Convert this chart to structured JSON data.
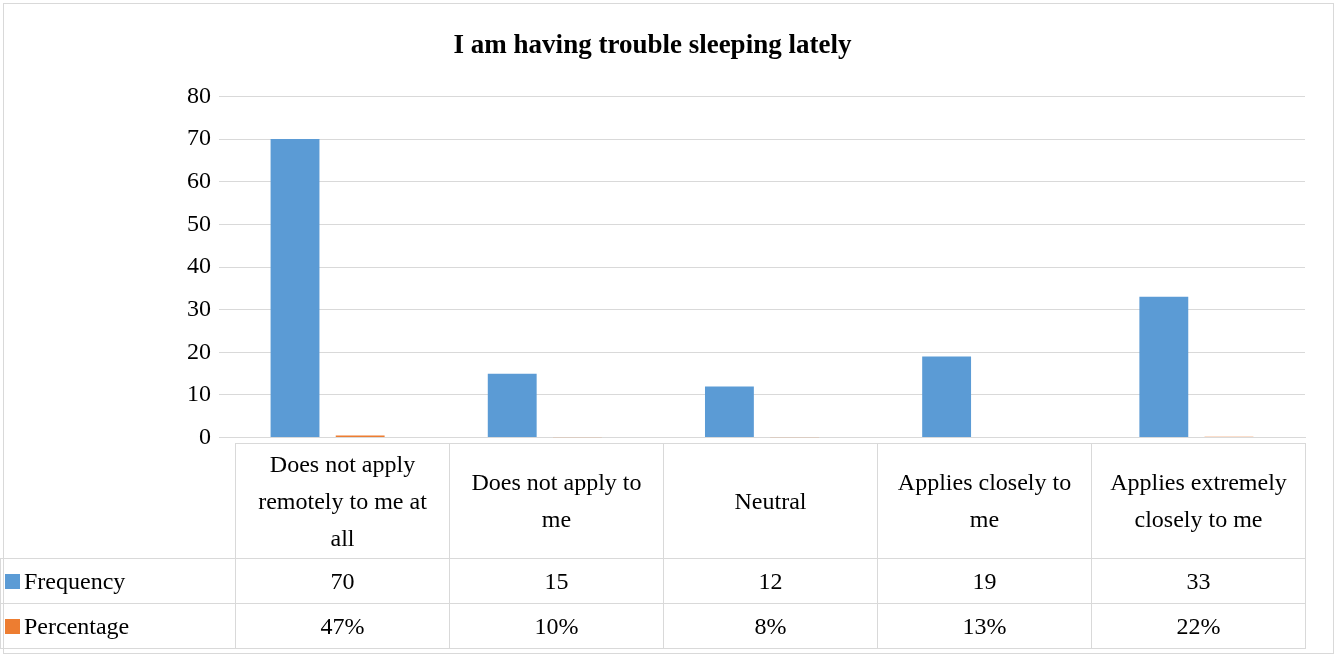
{
  "chart_data": {
    "type": "bar",
    "title": "I am having trouble sleeping lately",
    "categories": [
      "Does not apply remotely to me at all",
      "Does not apply to me",
      "Neutral",
      "Applies closely to me",
      "Applies extremely closely to me"
    ],
    "series": [
      {
        "name": "Frequency",
        "color": "#5b9bd5",
        "values": [
          70,
          15,
          12,
          19,
          33
        ]
      },
      {
        "name": "Percentage",
        "color": "#ed7d31",
        "values": [
          0.47,
          0.1,
          0.08,
          0.13,
          0.22
        ],
        "value_labels": [
          "47%",
          "10%",
          "8%",
          "13%",
          "22%"
        ]
      }
    ],
    "ylim": [
      0,
      80
    ],
    "yticks": [
      0,
      10,
      20,
      30,
      40,
      50,
      60,
      70,
      80
    ],
    "grid": "y",
    "legend": "bottom",
    "data_labels": true
  }
}
